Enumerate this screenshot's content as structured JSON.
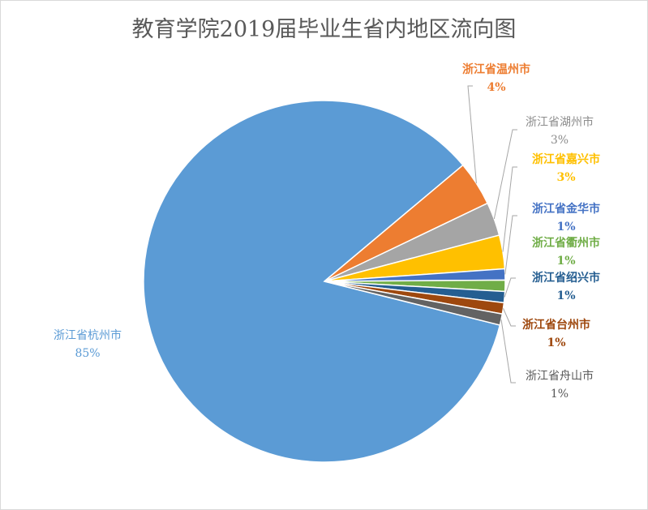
{
  "chart_data": {
    "type": "pie",
    "title": "教育学院2019届毕业生省内地区流向图",
    "slices": [
      {
        "label": "浙江省杭州市",
        "value": 85,
        "display": "85%",
        "color": "#5b9bd5",
        "bold": false
      },
      {
        "label": "浙江省温州市",
        "value": 4,
        "display": "4%",
        "color": "#ed7d31",
        "bold": true
      },
      {
        "label": "浙江省湖州市",
        "value": 3,
        "display": "3%",
        "color": "#a5a5a5",
        "bold": false
      },
      {
        "label": "浙江省嘉兴市",
        "value": 3,
        "display": "3%",
        "color": "#ffc000",
        "bold": true
      },
      {
        "label": "浙江省金华市",
        "value": 1,
        "display": "1%",
        "color": "#4472c4",
        "bold": true
      },
      {
        "label": "浙江省衢州市",
        "value": 1,
        "display": "1%",
        "color": "#70ad47",
        "bold": true
      },
      {
        "label": "浙江省绍兴市",
        "value": 1,
        "display": "1%",
        "color": "#255e91",
        "bold": true
      },
      {
        "label": "浙江省台州市",
        "value": 1,
        "display": "1%",
        "color": "#9e480e",
        "bold": true
      },
      {
        "label": "浙江省舟山市",
        "value": 1,
        "display": "1%",
        "color": "#636363",
        "bold": false
      }
    ],
    "legend": "none"
  }
}
